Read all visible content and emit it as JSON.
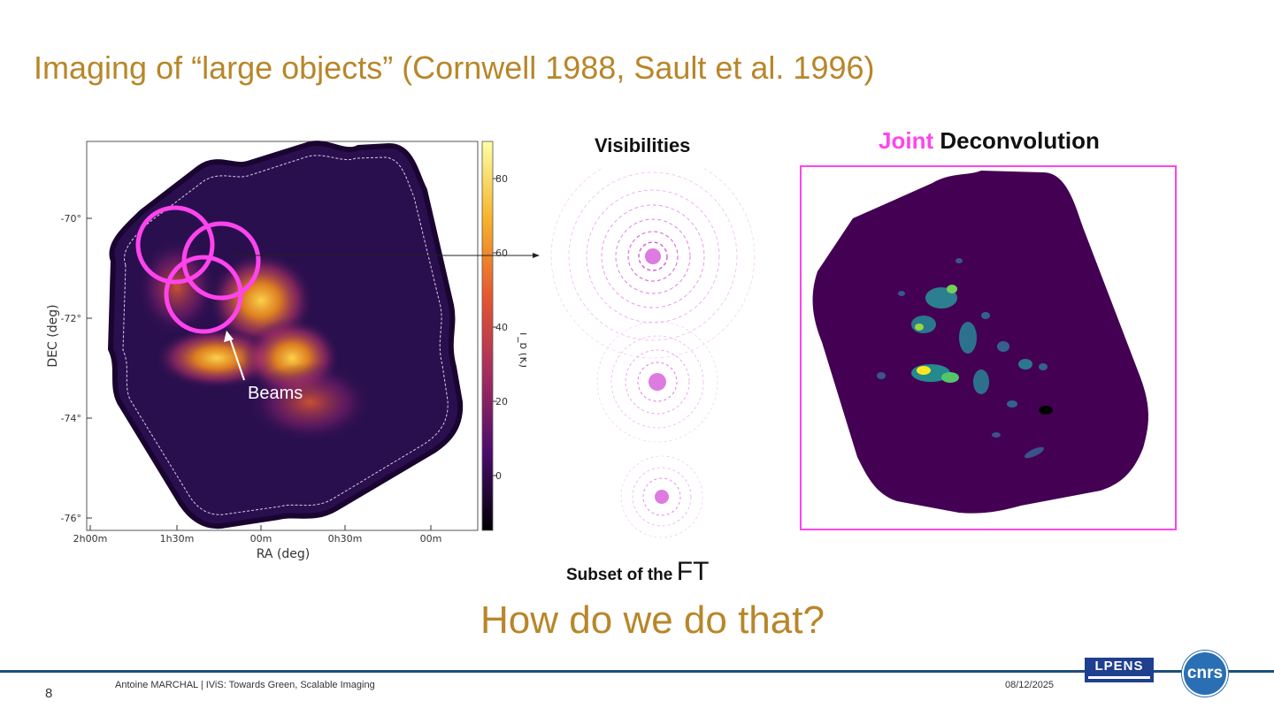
{
  "slide": {
    "title": "Imaging of “large objects” (Cornwell 1988, Sault et al. 1996)",
    "question": "How do we do that?",
    "page_number": "8"
  },
  "sky_map": {
    "xlabel": "RA (deg)",
    "ylabel": "DEC (deg)",
    "x_ticks": [
      "2h00m",
      "1h30m",
      "00m",
      "0h30m",
      "00m"
    ],
    "y_ticks": [
      "-70°",
      "-72°",
      "-74°",
      "-76°"
    ],
    "colorbar_label": "T_b (K)",
    "colorbar_ticks": [
      "80",
      "60",
      "40",
      "20",
      "0"
    ],
    "beams_label": "Beams",
    "colormap": "inferno"
  },
  "visibilities": {
    "title": "Visibilities",
    "caption_prefix": "Subset of the",
    "caption_emph": "FT",
    "color": "#d45ad8"
  },
  "deconvolution": {
    "title_highlight": "Joint",
    "title_rest": "Deconvolution",
    "highlight_color": "#ff44ee",
    "colormap": "viridis"
  },
  "footer": {
    "author": "Antoine MARCHAL",
    "talk": "| IViS: Towards Green, Scalable Imaging",
    "date": "08/12/2025",
    "logo_left": "LPENS",
    "logo_right": "cnrs"
  },
  "colors": {
    "title": "#b8862a",
    "accent_magenta": "#ff44ee",
    "footer_rule": "#1f4e79",
    "map_background": "#2a0f4e",
    "decon_background": "#440154"
  }
}
